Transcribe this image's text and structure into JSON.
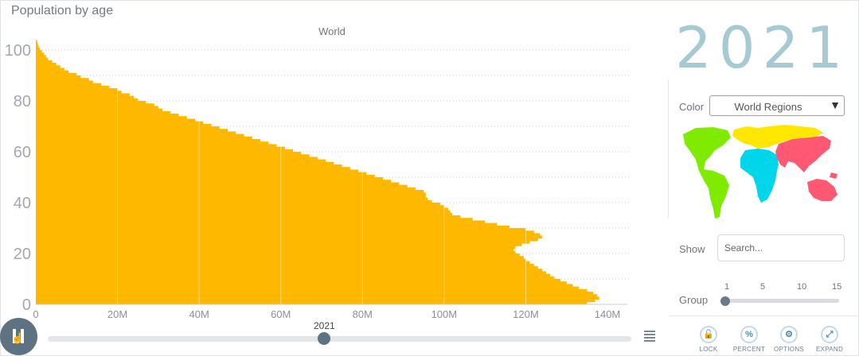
{
  "header": {
    "title": "Population by age",
    "year": "2021"
  },
  "controls": {
    "color_label": "Color",
    "color_value": "World Regions",
    "show_label": "Show",
    "search_placeholder": "Search...",
    "group_label": "Group",
    "group_ticks": [
      "1",
      "5",
      "10",
      "15"
    ],
    "buttons": [
      {
        "label": "LOCK",
        "icon": "lock-icon"
      },
      {
        "label": "PERCENT",
        "icon": "percent-icon"
      },
      {
        "label": "OPTIONS",
        "icon": "gear-icon"
      },
      {
        "label": "EXPAND",
        "icon": "expand-icon"
      }
    ],
    "timeline_year": "2021",
    "timeline_progress": 0.47
  },
  "map_colors": {
    "americas": "#7feb00",
    "africa": "#00d5e9",
    "europe": "#ffe700",
    "asia": "#ff5872",
    "oceania": "#ff5872"
  },
  "chart_data": {
    "type": "bar",
    "orientation": "horizontal",
    "subtitle": "World",
    "x_ticks": [
      "0",
      "20M",
      "40M",
      "60M",
      "80M",
      "100M",
      "120M",
      "140M"
    ],
    "y_ticks": [
      "0",
      "20",
      "40",
      "60",
      "80",
      "100"
    ],
    "xlim": [
      0,
      140000000
    ],
    "ylim": [
      0,
      105
    ],
    "bar_color": "#ffb800",
    "ages": [
      0,
      1,
      2,
      3,
      4,
      5,
      6,
      7,
      8,
      9,
      10,
      11,
      12,
      13,
      14,
      15,
      16,
      17,
      18,
      19,
      20,
      21,
      22,
      23,
      24,
      25,
      26,
      27,
      28,
      29,
      30,
      31,
      32,
      33,
      34,
      35,
      36,
      37,
      38,
      39,
      40,
      41,
      42,
      43,
      44,
      45,
      46,
      47,
      48,
      49,
      50,
      51,
      52,
      53,
      54,
      55,
      56,
      57,
      58,
      59,
      60,
      61,
      62,
      63,
      64,
      65,
      66,
      67,
      68,
      69,
      70,
      71,
      72,
      73,
      74,
      75,
      76,
      77,
      78,
      79,
      80,
      81,
      82,
      83,
      84,
      85,
      86,
      87,
      88,
      89,
      90,
      91,
      92,
      93,
      94,
      95,
      96,
      97,
      98,
      99,
      100,
      101,
      102,
      103
    ],
    "values": [
      135,
      137,
      138,
      137.5,
      136.5,
      135,
      133,
      131.5,
      130,
      128.5,
      127,
      126,
      125,
      124,
      123,
      122,
      121,
      120,
      119.5,
      118.5,
      117.5,
      117,
      117.5,
      119,
      121,
      123,
      124,
      123.5,
      122,
      120,
      116,
      113,
      110,
      107,
      104,
      102,
      101.5,
      101,
      100,
      99,
      97,
      96,
      95.5,
      95.5,
      95,
      93,
      91,
      89,
      87,
      85,
      83,
      81,
      79,
      77,
      75,
      73,
      71,
      69,
      67,
      65,
      63,
      61,
      59,
      57,
      55,
      53,
      51,
      49,
      47,
      45,
      43,
      41,
      39,
      37,
      35,
      33,
      31,
      30,
      29,
      27,
      25,
      24,
      23,
      21,
      20,
      18,
      16,
      14,
      13,
      11,
      10,
      8,
      7,
      6,
      5,
      4,
      3,
      2.5,
      2,
      1.5,
      1,
      0.7,
      0.5,
      0.3
    ],
    "value_unit": "millions"
  }
}
